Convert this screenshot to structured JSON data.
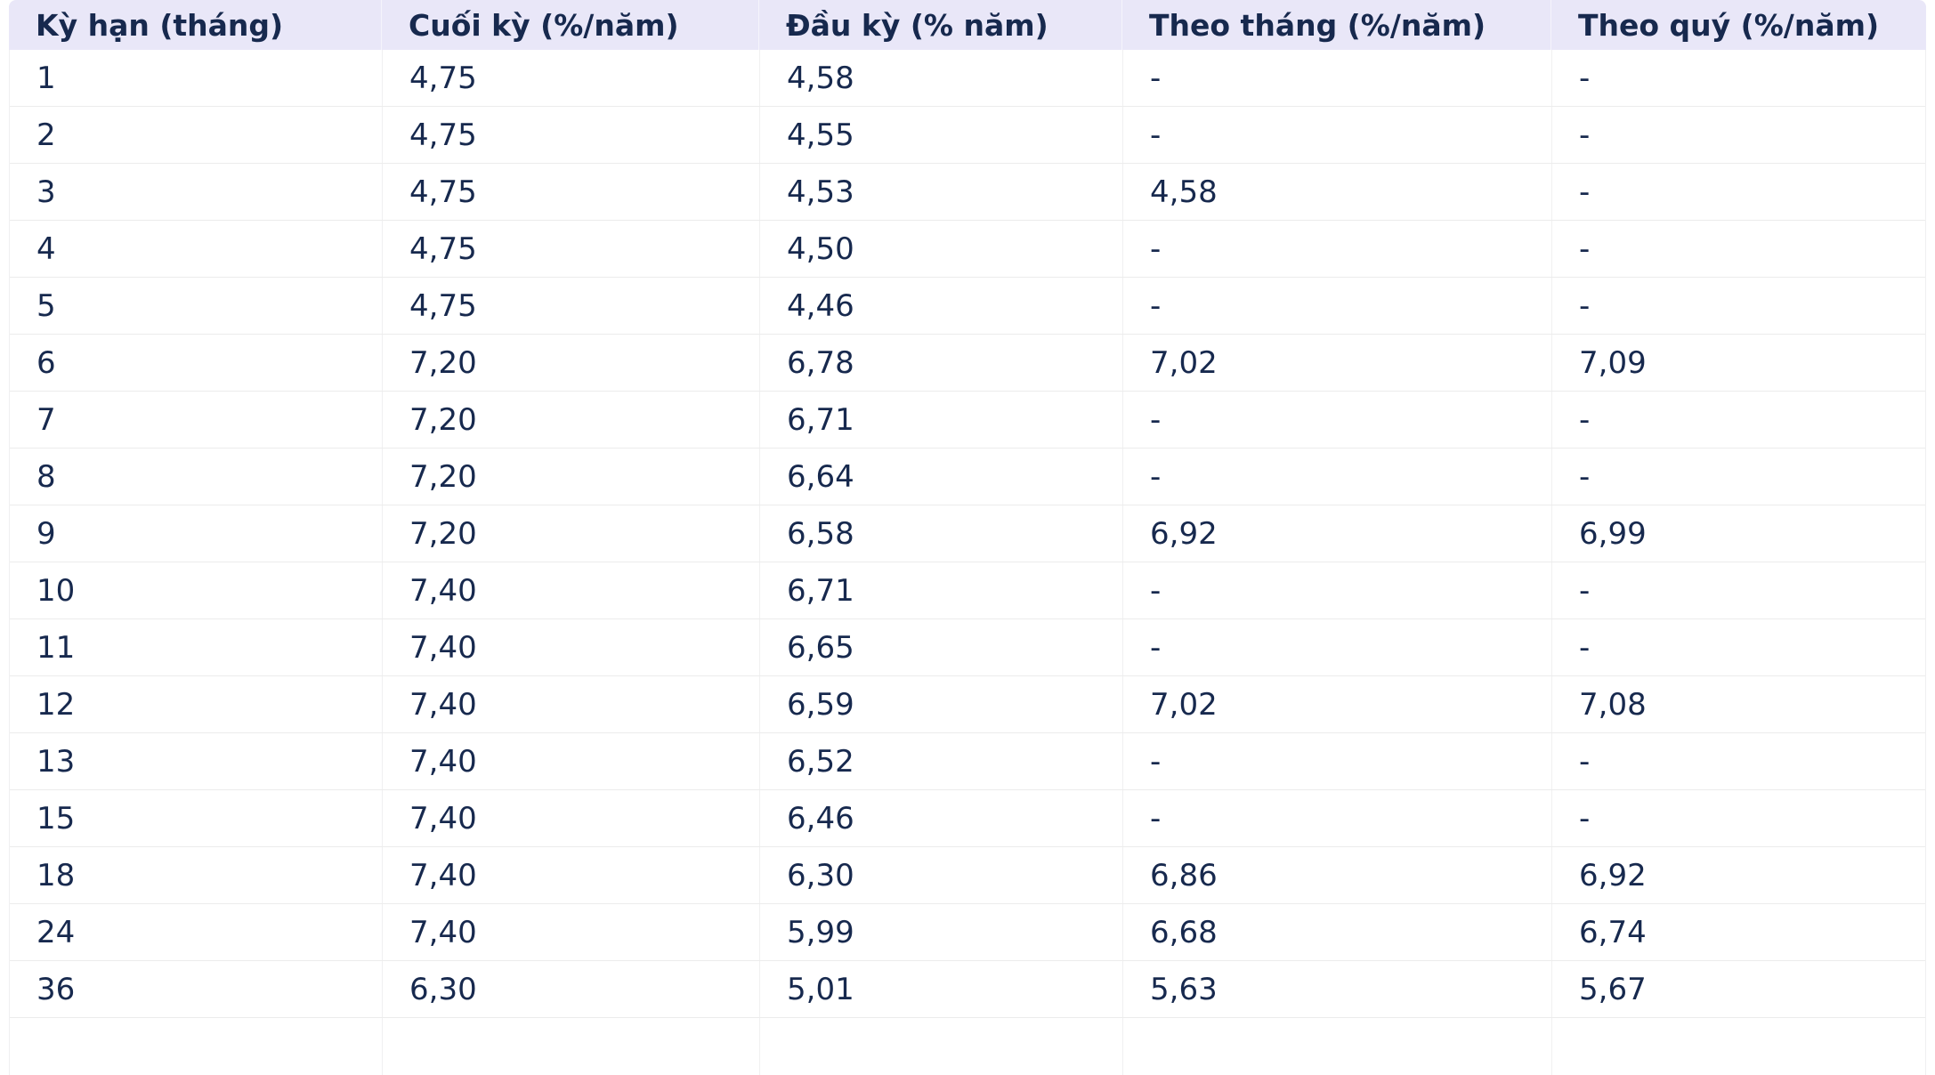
{
  "colors": {
    "header_bg": "#e9e7f8",
    "text": "#17294e",
    "row_border": "#ececec",
    "column_border": "#f0f0f1",
    "page_bg": "#ffffff"
  },
  "chart_data": {
    "type": "table",
    "columns": [
      "Kỳ hạn (tháng)",
      "Cuối kỳ (%/năm)",
      "Đầu kỳ (% năm)",
      "Theo tháng (%/năm)",
      "Theo quý (%/năm)"
    ],
    "rows": [
      [
        "1",
        "4,75",
        "4,58",
        "-",
        "-"
      ],
      [
        "2",
        "4,75",
        "4,55",
        "-",
        "-"
      ],
      [
        "3",
        "4,75",
        "4,53",
        "4,58",
        "-"
      ],
      [
        "4",
        "4,75",
        "4,50",
        "-",
        "-"
      ],
      [
        "5",
        "4,75",
        "4,46",
        "-",
        "-"
      ],
      [
        "6",
        "7,20",
        "6,78",
        "7,02",
        "7,09"
      ],
      [
        "7",
        "7,20",
        "6,71",
        "-",
        "-"
      ],
      [
        "8",
        "7,20",
        "6,64",
        "-",
        "-"
      ],
      [
        "9",
        "7,20",
        "6,58",
        "6,92",
        "6,99"
      ],
      [
        "10",
        "7,40",
        "6,71",
        "-",
        "-"
      ],
      [
        "11",
        "7,40",
        "6,65",
        "-",
        "-"
      ],
      [
        "12",
        "7,40",
        "6,59",
        "7,02",
        "7,08"
      ],
      [
        "13",
        "7,40",
        "6,52",
        "-",
        "-"
      ],
      [
        "15",
        "7,40",
        "6,46",
        "-",
        "-"
      ],
      [
        "18",
        "7,40",
        "6,30",
        "6,86",
        "6,92"
      ],
      [
        "24",
        "7,40",
        "5,99",
        "6,68",
        "6,74"
      ],
      [
        "36",
        "6,30",
        "5,01",
        "5,63",
        "5,67"
      ]
    ]
  }
}
